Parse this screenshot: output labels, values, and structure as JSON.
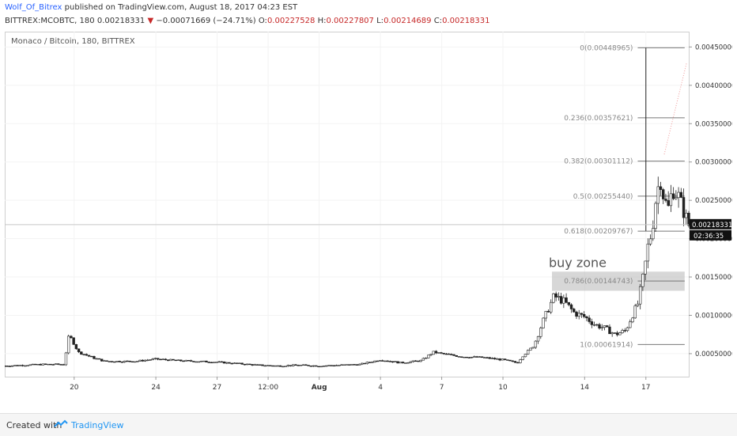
{
  "header": {
    "author": "Wolf_Of_Bitrex",
    "published": "published on TradingView.com, August 18, 2017 04:23 EST",
    "ticker": "BITTREX:MCOBTC, 180",
    "last": "0.00218331",
    "change": "−0.00071669 (−24.71%)",
    "ohlc": [
      {
        "label": "O:",
        "value": "0.00227528"
      },
      {
        "label": "H:",
        "value": "0.00227807"
      },
      {
        "label": "L:",
        "value": "0.00214689"
      },
      {
        "label": "C:",
        "value": "0.00218331"
      }
    ]
  },
  "footer": {
    "created_with": "Created with",
    "brand": "TradingView"
  },
  "chart_data": {
    "type": "candlestick",
    "title": "Monaco / Bitcoin, 180, BITTREX",
    "ylim": [
      0.0002,
      0.0047
    ],
    "y_ticks": [
      "0.00050000",
      "0.00100000",
      "0.00150000",
      "0.00200000",
      "0.00250000",
      "0.00300000",
      "0.00350000",
      "0.00400000",
      "0.00450000"
    ],
    "y_tick_values": [
      0.0005,
      0.001,
      0.0015,
      0.002,
      0.0025,
      0.003,
      0.0035,
      0.004,
      0.0045
    ],
    "x_ticks": [
      {
        "label": "20",
        "day": 20
      },
      {
        "label": "24",
        "day": 24
      },
      {
        "label": "27",
        "day": 27
      },
      {
        "label": "12:00",
        "day": 29.5
      },
      {
        "label": "Aug",
        "day": 32
      },
      {
        "label": "4",
        "day": 35
      },
      {
        "label": "7",
        "day": 38
      },
      {
        "label": "10",
        "day": 41
      },
      {
        "label": "14",
        "day": 45
      },
      {
        "label": "17",
        "day": 48
      }
    ],
    "x_range_days": [
      16.6,
      50.1
    ],
    "current_price": {
      "value": 0.00218331,
      "label": "0.00218331",
      "countdown": "02:36:35"
    },
    "fib_levels": [
      {
        "label": "0(0.00448965)",
        "value": 0.00448965
      },
      {
        "label": "0.236(0.00357621)",
        "value": 0.00357621
      },
      {
        "label": "0.382(0.00301112)",
        "value": 0.00301112
      },
      {
        "label": "0.5(0.00255440)",
        "value": 0.0025544
      },
      {
        "label": "0.618(0.00209767)",
        "value": 0.00209767
      },
      {
        "label": "0.786(0.00144743)",
        "value": 0.00144743
      },
      {
        "label": "1(0.00061914)",
        "value": 0.00061914
      }
    ],
    "zone": {
      "label": "buy zone",
      "y_low": 0.00132,
      "y_high": 0.00157,
      "x_start_day": 43.4,
      "x_end_day": 49.9
    },
    "price_path": [
      [
        16.6,
        0.00034
      ],
      [
        18.5,
        0.00036
      ],
      [
        19.5,
        0.00036
      ],
      [
        19.75,
        0.00075
      ],
      [
        20.2,
        0.00052
      ],
      [
        21,
        0.00044
      ],
      [
        21.5,
        0.0004
      ],
      [
        23,
        0.0004
      ],
      [
        24,
        0.00043
      ],
      [
        25,
        0.00041
      ],
      [
        26,
        0.0004
      ],
      [
        27,
        0.00039
      ],
      [
        28,
        0.00037
      ],
      [
        29,
        0.00035
      ],
      [
        30,
        0.00034
      ],
      [
        31,
        0.00035
      ],
      [
        32,
        0.00034
      ],
      [
        33,
        0.00035
      ],
      [
        34,
        0.00036
      ],
      [
        35,
        0.00042
      ],
      [
        36,
        0.00038
      ],
      [
        37,
        0.00041
      ],
      [
        37.6,
        0.00052
      ],
      [
        38,
        0.0005
      ],
      [
        39,
        0.00046
      ],
      [
        40,
        0.00045
      ],
      [
        41,
        0.00042
      ],
      [
        41.7,
        0.00038
      ],
      [
        42,
        0.00048
      ],
      [
        42.5,
        0.0006
      ],
      [
        43,
        0.00095
      ],
      [
        43.5,
        0.00125
      ],
      [
        44,
        0.00118
      ],
      [
        44.5,
        0.00103
      ],
      [
        45,
        0.00098
      ],
      [
        45.5,
        0.00088
      ],
      [
        46,
        0.00083
      ],
      [
        46.5,
        0.00075
      ],
      [
        47,
        0.0008
      ],
      [
        47.3,
        0.00098
      ],
      [
        47.6,
        0.00115
      ],
      [
        47.9,
        0.00155
      ],
      [
        48.1,
        0.0019
      ],
      [
        48.3,
        0.0021
      ],
      [
        48.5,
        0.00255
      ],
      [
        48.7,
        0.0028
      ],
      [
        48.9,
        0.0025
      ],
      [
        49.1,
        0.0024
      ],
      [
        49.3,
        0.00265
      ],
      [
        49.6,
        0.00255
      ],
      [
        49.9,
        0.00232
      ],
      [
        50.1,
        0.00218
      ]
    ],
    "spike": {
      "day": 48,
      "high": 0.00448965,
      "low": 0.0021
    }
  }
}
